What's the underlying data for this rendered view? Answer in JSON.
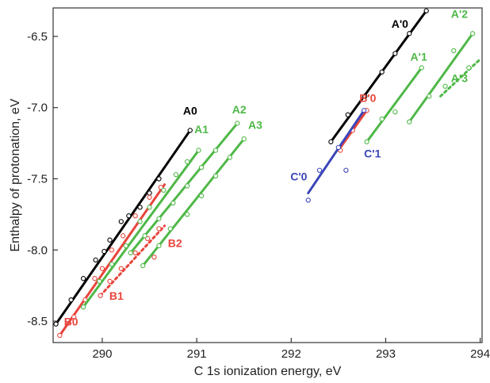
{
  "chart_data": {
    "type": "scatter",
    "title": "",
    "xlabel": "C 1s ionization energy, eV",
    "ylabel": "Enthalpy of protonation, eV",
    "xlim": [
      289.48,
      294.02
    ],
    "ylim": [
      -8.65,
      -6.3
    ],
    "xticks": [
      290,
      291,
      292,
      293,
      294
    ],
    "yticks": [
      -6.5,
      -7.0,
      -7.5,
      -8.0,
      -8.5
    ],
    "xtick_labels": [
      "290",
      "291",
      "292",
      "293",
      "294"
    ],
    "ytick_labels": [
      "-6.5",
      "-7.0",
      "-7.5",
      "-8.0",
      "-8.5"
    ],
    "grid": false,
    "colors": {
      "A0": "#000000",
      "A": "#4fb848",
      "B": "#e8453c",
      "C": "#3a45b8"
    },
    "series": [
      {
        "name": "A0",
        "color": "#000000",
        "line": [
          [
            289.51,
            -8.52
          ],
          [
            290.93,
            -7.16
          ]
        ],
        "points": [
          [
            289.51,
            -8.52
          ],
          [
            289.67,
            -8.35
          ],
          [
            289.8,
            -8.2
          ],
          [
            289.93,
            -8.07
          ],
          [
            290.02,
            -8.01
          ],
          [
            290.08,
            -7.93
          ],
          [
            290.2,
            -7.8
          ],
          [
            290.28,
            -7.76
          ],
          [
            290.4,
            -7.7
          ],
          [
            290.5,
            -7.6
          ],
          [
            290.6,
            -7.5
          ],
          [
            290.93,
            -7.16
          ]
        ]
      },
      {
        "name": "B0",
        "color": "#e8453c",
        "line": [
          [
            289.55,
            -8.6
          ],
          [
            290.66,
            -7.54
          ]
        ],
        "points": [
          [
            289.55,
            -8.6
          ],
          [
            289.7,
            -8.47
          ],
          [
            289.82,
            -8.35
          ],
          [
            289.92,
            -8.2
          ],
          [
            290.0,
            -8.13
          ],
          [
            290.1,
            -8.0
          ],
          [
            290.22,
            -7.9
          ],
          [
            290.35,
            -7.76
          ],
          [
            290.5,
            -7.63
          ],
          [
            290.62,
            -7.56
          ]
        ]
      },
      {
        "name": "B1",
        "color": "#e8453c",
        "dashed": true,
        "line": [
          [
            289.98,
            -8.32
          ],
          [
            290.66,
            -7.83
          ]
        ],
        "points": [
          [
            289.98,
            -8.32
          ],
          [
            290.08,
            -8.22
          ],
          [
            290.2,
            -8.13
          ],
          [
            290.35,
            -8.02
          ],
          [
            290.48,
            -7.92
          ],
          [
            290.6,
            -7.85
          ]
        ]
      },
      {
        "name": "B2",
        "color": "#e8453c",
        "line": [],
        "points": [
          [
            290.55,
            -8.05
          ]
        ]
      },
      {
        "name": "A1",
        "color": "#4fb848",
        "line": [
          [
            289.8,
            -8.4
          ],
          [
            291.02,
            -7.3
          ]
        ],
        "points": [
          [
            289.8,
            -8.4
          ],
          [
            289.97,
            -8.22
          ],
          [
            290.1,
            -8.1
          ],
          [
            290.25,
            -7.97
          ],
          [
            290.4,
            -7.8
          ],
          [
            290.5,
            -7.7
          ],
          [
            290.65,
            -7.58
          ],
          [
            290.78,
            -7.47
          ],
          [
            290.9,
            -7.38
          ],
          [
            291.02,
            -7.3
          ]
        ]
      },
      {
        "name": "A2",
        "color": "#4fb848",
        "line": [
          [
            290.3,
            -8.02
          ],
          [
            291.43,
            -7.11
          ]
        ],
        "points": [
          [
            290.3,
            -8.02
          ],
          [
            290.45,
            -7.9
          ],
          [
            290.6,
            -7.78
          ],
          [
            290.75,
            -7.67
          ],
          [
            290.9,
            -7.55
          ],
          [
            291.05,
            -7.42
          ],
          [
            291.2,
            -7.3
          ],
          [
            291.43,
            -7.11
          ]
        ]
      },
      {
        "name": "A3",
        "color": "#4fb848",
        "line": [
          [
            290.43,
            -8.11
          ],
          [
            291.5,
            -7.22
          ]
        ],
        "points": [
          [
            290.43,
            -8.11
          ],
          [
            290.6,
            -7.97
          ],
          [
            290.72,
            -7.85
          ],
          [
            290.9,
            -7.75
          ],
          [
            291.05,
            -7.62
          ],
          [
            291.2,
            -7.48
          ],
          [
            291.35,
            -7.35
          ],
          [
            291.5,
            -7.22
          ]
        ]
      },
      {
        "name": "A'0",
        "color": "#000000",
        "line": [
          [
            292.42,
            -7.24
          ],
          [
            293.43,
            -6.32
          ]
        ],
        "points": [
          [
            292.42,
            -7.24
          ],
          [
            292.6,
            -7.05
          ],
          [
            292.78,
            -6.92
          ],
          [
            292.96,
            -6.75
          ],
          [
            293.1,
            -6.62
          ],
          [
            293.25,
            -6.48
          ],
          [
            293.43,
            -6.32
          ]
        ]
      },
      {
        "name": "B'0",
        "color": "#e8453c",
        "line": [
          [
            292.5,
            -7.3
          ],
          [
            292.8,
            -7.02
          ]
        ],
        "points": [
          [
            292.52,
            -7.3
          ],
          [
            292.65,
            -7.16
          ],
          [
            292.8,
            -7.02
          ]
        ]
      },
      {
        "name": "C'0",
        "color": "#3a45b8",
        "line": [
          [
            292.18,
            -7.6
          ],
          [
            292.77,
            -7.02
          ]
        ],
        "points": [
          [
            292.18,
            -7.65
          ],
          [
            292.3,
            -7.44
          ],
          [
            292.5,
            -7.28
          ],
          [
            292.77,
            -7.02
          ]
        ]
      },
      {
        "name": "C'1",
        "color": "#3a45b8",
        "line": [],
        "points": [
          [
            292.58,
            -7.44
          ]
        ]
      },
      {
        "name": "A'1",
        "color": "#4fb848",
        "line": [
          [
            292.8,
            -7.24
          ],
          [
            293.38,
            -6.72
          ]
        ],
        "points": [
          [
            292.8,
            -7.24
          ],
          [
            292.96,
            -7.08
          ],
          [
            293.1,
            -7.03
          ],
          [
            293.38,
            -6.72
          ]
        ]
      },
      {
        "name": "A'2",
        "color": "#4fb848",
        "line": [
          [
            293.25,
            -7.1
          ],
          [
            293.92,
            -6.48
          ]
        ],
        "points": [
          [
            293.25,
            -7.1
          ],
          [
            293.46,
            -6.92
          ],
          [
            293.72,
            -6.6
          ],
          [
            293.92,
            -6.48
          ]
        ]
      },
      {
        "name": "A'3",
        "color": "#4fb848",
        "dashed": true,
        "line": [
          [
            293.58,
            -6.92
          ],
          [
            294.0,
            -6.66
          ]
        ],
        "points": [
          [
            293.63,
            -6.85
          ],
          [
            293.88,
            -6.72
          ]
        ]
      }
    ],
    "annotations": [
      {
        "text": "A0",
        "color": "#000000",
        "at": [
          290.93,
          -7.05
        ]
      },
      {
        "text": "A1",
        "color": "#4fb848",
        "at": [
          291.05,
          -7.18
        ]
      },
      {
        "text": "A2",
        "color": "#4fb848",
        "at": [
          291.45,
          -7.04
        ]
      },
      {
        "text": "A3",
        "color": "#4fb848",
        "at": [
          291.62,
          -7.15
        ]
      },
      {
        "text": "B0",
        "color": "#e8453c",
        "at": [
          289.67,
          -8.53
        ]
      },
      {
        "text": "B1",
        "color": "#e8453c",
        "at": [
          290.15,
          -8.35
        ]
      },
      {
        "text": "B2",
        "color": "#e8453c",
        "at": [
          290.77,
          -7.98
        ]
      },
      {
        "text": "A'0",
        "color": "#000000",
        "at": [
          293.15,
          -6.44
        ]
      },
      {
        "text": "B'0",
        "color": "#e8453c",
        "at": [
          292.81,
          -6.96
        ]
      },
      {
        "text": "C'0",
        "color": "#3a45b8",
        "at": [
          292.08,
          -7.51
        ]
      },
      {
        "text": "C'1",
        "color": "#3a45b8",
        "at": [
          292.86,
          -7.35
        ]
      },
      {
        "text": "A'1",
        "color": "#4fb848",
        "at": [
          293.35,
          -6.67
        ]
      },
      {
        "text": "A'2",
        "color": "#4fb848",
        "at": [
          293.78,
          -6.37
        ]
      },
      {
        "text": "A'3",
        "color": "#4fb848",
        "at": [
          293.78,
          -6.82
        ]
      }
    ]
  }
}
